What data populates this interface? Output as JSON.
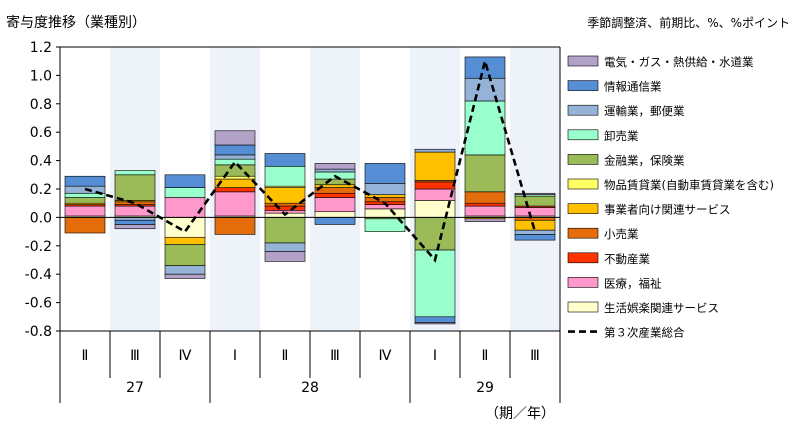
{
  "chart_data": {
    "type": "bar",
    "title": "寄与度推移（業種別）",
    "subtitle": "季節調整済、前期比、%、%ポイント",
    "xlabel": "（期／年）",
    "ylim": [
      -0.8,
      1.2
    ],
    "yticks": [
      "1.2",
      "1.0",
      "0.8",
      "0.6",
      "0.4",
      "0.2",
      "0.0",
      "-0.2",
      "-0.4",
      "-0.6",
      "-0.8"
    ],
    "categories": [
      "Ⅱ",
      "Ⅲ",
      "Ⅳ",
      "Ⅰ",
      "Ⅱ",
      "Ⅲ",
      "Ⅳ",
      "Ⅰ",
      "Ⅱ",
      "Ⅲ"
    ],
    "years": [
      {
        "label": "27",
        "from": 0,
        "to": 2
      },
      {
        "label": "28",
        "from": 3,
        "to": 6
      },
      {
        "label": "29",
        "from": 7,
        "to": 9
      }
    ],
    "shaded": [
      1,
      3,
      5,
      7,
      9
    ],
    "series": [
      {
        "name": "生活娯楽関連サービス",
        "color": "#FFFFCC",
        "values": [
          0.01,
          0.01,
          -0.14,
          0.01,
          0.03,
          0.04,
          0.06,
          0.12,
          0.01,
          0.01
        ]
      },
      {
        "name": "医療，福祉",
        "color": "#FF99CC",
        "values": [
          0.07,
          0.07,
          0.14,
          0.17,
          0.02,
          0.1,
          0.03,
          0.08,
          0.07,
          0.06
        ]
      },
      {
        "name": "不動産業",
        "color": "#FF3300",
        "values": [
          0.01,
          0.01,
          0.0,
          0.03,
          0.03,
          0.03,
          0.02,
          0.05,
          0.02,
          0.01
        ]
      },
      {
        "name": "小売業",
        "color": "#E46C0A",
        "values": [
          -0.11,
          0.02,
          0.0,
          -0.12,
          0.02,
          0.04,
          0.03,
          0.01,
          0.08,
          -0.02
        ]
      },
      {
        "name": "事業者向け関連サービス",
        "color": "#FFC000",
        "values": [
          0.01,
          0.01,
          -0.05,
          0.06,
          0.11,
          0.02,
          0.02,
          0.2,
          -0.01,
          -0.07
        ]
      },
      {
        "name": "物品賃貸業(自動車賃貸業を含む)",
        "color": "#FFFF66",
        "values": [
          0.0,
          0.0,
          0.0,
          0.02,
          0.01,
          0.0,
          0.0,
          0.0,
          0.0,
          0.0
        ]
      },
      {
        "name": "金融業，保険業",
        "color": "#9BBB59",
        "values": [
          0.04,
          0.18,
          -0.15,
          0.08,
          -0.18,
          0.04,
          -0.01,
          -0.23,
          0.26,
          0.07
        ]
      },
      {
        "name": "卸売業",
        "color": "#99FFCC",
        "values": [
          0.03,
          0.03,
          0.07,
          0.04,
          0.14,
          0.05,
          -0.09,
          -0.47,
          0.38,
          0.01
        ]
      },
      {
        "name": "運輸業，郵便業",
        "color": "#95B3D7",
        "values": [
          0.05,
          -0.02,
          -0.06,
          0.03,
          -0.06,
          0.02,
          0.08,
          0.02,
          0.16,
          -0.03
        ]
      },
      {
        "name": "情報通信業",
        "color": "#558ED5",
        "values": [
          0.07,
          -0.03,
          0.09,
          0.07,
          0.09,
          -0.05,
          0.14,
          -0.04,
          0.15,
          -0.04
        ]
      },
      {
        "name": "電気・ガス・熱供給・水道業",
        "color": "#B3A2C7",
        "values": [
          0.0,
          -0.03,
          -0.03,
          0.1,
          -0.07,
          0.04,
          0.0,
          -0.01,
          -0.02,
          0.01
        ]
      }
    ],
    "line": {
      "name": "第３次産業総合",
      "values": [
        0.2,
        0.1,
        -0.1,
        0.39,
        0.02,
        0.29,
        0.1,
        -0.3,
        1.1,
        -0.1
      ]
    },
    "legend_placement": "right"
  }
}
